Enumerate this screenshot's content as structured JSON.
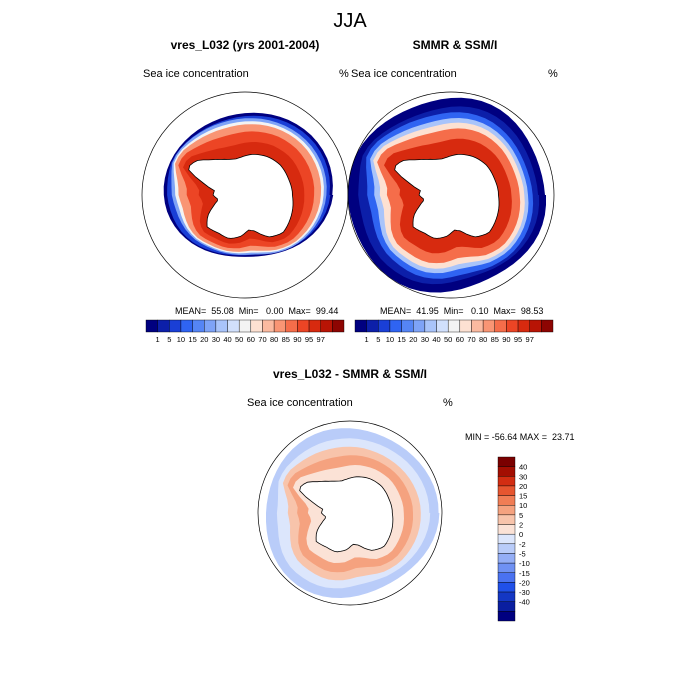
{
  "main_title": "JJA",
  "colors": {
    "lat_scale": [
      "#000080",
      "#0c1fa9",
      "#1a3fd6",
      "#2f64f2",
      "#5585f5",
      "#7ea3f7",
      "#a9c4fa",
      "#d1e0fc",
      "#f3f3f3",
      "#fde1d2",
      "#fbbaa0",
      "#f99574",
      "#f56d4a",
      "#ec4525",
      "#d72a0f",
      "#b81405",
      "#8d0502"
    ],
    "diff_scale": [
      "#000080",
      "#0a1ea0",
      "#1437c4",
      "#2050e8",
      "#4a72f0",
      "#6f91f3",
      "#94aef6",
      "#b9ccf9",
      "#dce6fc",
      "#fbe2d6",
      "#f8c4ab",
      "#f5a27f",
      "#f07d55",
      "#e6552f",
      "#d22d12",
      "#a30e02",
      "#7a0000"
    ],
    "land": "#ffffff",
    "coast": "#000000"
  },
  "chart_data": [
    {
      "type": "heatmap",
      "title": "vres_L032 (yrs 2001-2004)",
      "left_label": "Sea ice concentration",
      "right_label": "%",
      "stats_text": "MEAN=  55.08  Min=   0.00  Max=  99.44",
      "colorbar_ticks": [
        "1",
        "5",
        "10",
        "15",
        "20",
        "30",
        "40",
        "50",
        "60",
        "70",
        "80",
        "85",
        "90",
        "95",
        "97"
      ]
    },
    {
      "type": "heatmap",
      "title": "SMMR & SSM/I",
      "left_label": "Sea ice concentration",
      "right_label": "%",
      "stats_text": "MEAN=  41.95  Min=   0.10  Max=  98.53",
      "colorbar_ticks": [
        "1",
        "5",
        "10",
        "15",
        "20",
        "30",
        "40",
        "50",
        "60",
        "70",
        "80",
        "85",
        "90",
        "95",
        "97"
      ]
    },
    {
      "type": "heatmap",
      "title": "vres_L032 - SMMR & SSM/I",
      "left_label": "Sea ice concentration",
      "right_label": "%",
      "stats_text": "MIN = -56.64 MAX =  23.71",
      "colorbar_ticks": [
        "40",
        "30",
        "20",
        "15",
        "10",
        "5",
        "2",
        "0",
        "-2",
        "-5",
        "-10",
        "-15",
        "-20",
        "-30",
        "-40"
      ]
    }
  ]
}
